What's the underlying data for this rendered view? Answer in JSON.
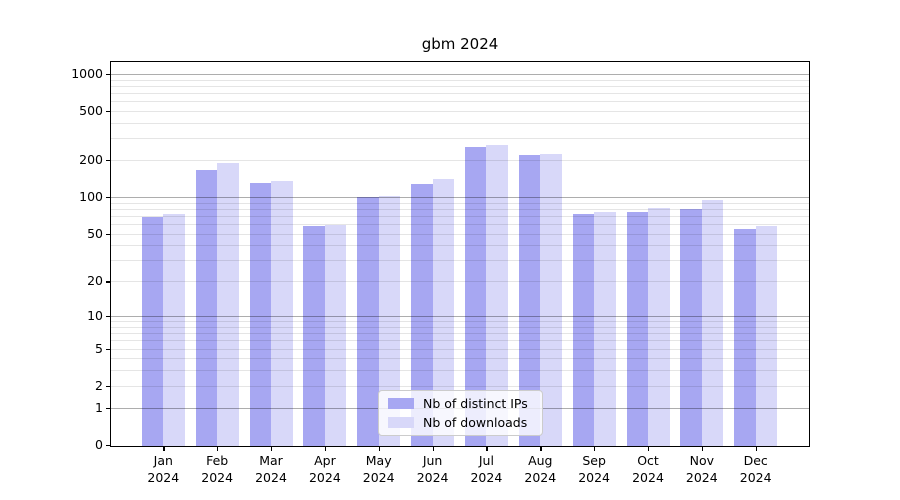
{
  "title": "gbm 2024",
  "colors": {
    "distinct_ips": "#a7a7f2",
    "downloads": "#d8d8f9",
    "grid_major": "rgba(0,0,0,0.32)",
    "grid_minor": "rgba(0,0,0,0.10)",
    "spine": "#000000"
  },
  "legend": {
    "items": [
      {
        "label": "Nb of distinct IPs",
        "color_key": "distinct_ips"
      },
      {
        "label": "Nb of downloads",
        "color_key": "downloads"
      }
    ],
    "position": "lower center"
  },
  "y_axis": {
    "tick_labels": [
      "1000",
      "500",
      "200",
      "100",
      "50",
      "20",
      "10",
      "5",
      "2",
      "1",
      "0"
    ],
    "tick_values": [
      1000,
      500,
      200,
      100,
      50,
      20,
      10,
      5,
      2,
      1,
      0
    ],
    "major_grid_values": [
      1,
      10,
      100,
      1000
    ],
    "minor_grid_values": [
      2,
      3,
      4,
      5,
      6,
      7,
      8,
      9,
      20,
      30,
      40,
      50,
      60,
      70,
      80,
      90,
      200,
      300,
      400,
      500,
      600,
      700,
      800,
      900
    ],
    "scale": "log1p"
  },
  "x_axis": {
    "months": [
      "Jan",
      "Feb",
      "Mar",
      "Apr",
      "May",
      "Jun",
      "Jul",
      "Aug",
      "Sep",
      "Oct",
      "Nov",
      "Dec"
    ],
    "year": "2024"
  },
  "chart_data": {
    "type": "bar",
    "title": "gbm 2024",
    "categories": [
      "Jan 2024",
      "Feb 2024",
      "Mar 2024",
      "Apr 2024",
      "May 2024",
      "Jun 2024",
      "Jul 2024",
      "Aug 2024",
      "Sep 2024",
      "Oct 2024",
      "Nov 2024",
      "Dec 2024"
    ],
    "series": [
      {
        "name": "Nb of distinct IPs",
        "values": [
          69,
          165,
          130,
          58,
          100,
          128,
          255,
          218,
          73,
          76,
          80,
          55
        ]
      },
      {
        "name": "Nb of downloads",
        "values": [
          73,
          190,
          136,
          59,
          101,
          140,
          265,
          224,
          75,
          82,
          94,
          58
        ]
      }
    ],
    "xlabel": "",
    "ylabel": "",
    "yscale": "log1p",
    "yticks": [
      0,
      1,
      2,
      5,
      10,
      20,
      50,
      100,
      200,
      500,
      1000
    ],
    "ylim": [
      0,
      1250
    ],
    "grid": true,
    "grid_on_top_of_bars": true,
    "legend_position": "lower center"
  }
}
